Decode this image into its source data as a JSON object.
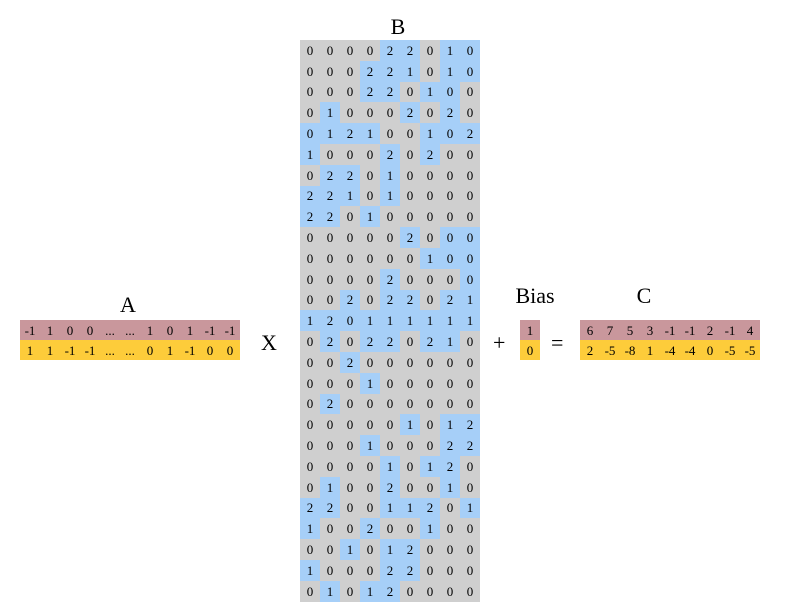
{
  "labels": {
    "A": "A",
    "B": "B",
    "Bias": "Bias",
    "C": "C"
  },
  "operators": {
    "times": "X",
    "plus": "+",
    "equals": "="
  },
  "colors": {
    "pink": "#c9979c",
    "yellow": "#fdcc3a",
    "blue": "#a6cff8",
    "gray": "#cfcfcf"
  },
  "A": [
    [
      "-1",
      "1",
      "0",
      "0",
      "...",
      "...",
      "1",
      "0",
      "1",
      "-1",
      "-1"
    ],
    [
      "1",
      "1",
      "-1",
      "-1",
      "...",
      "...",
      "0",
      "1",
      "-1",
      "0",
      "0"
    ]
  ],
  "bias": [
    "1",
    "0"
  ],
  "C": [
    [
      "6",
      "7",
      "5",
      "3",
      "-1",
      "-1",
      "2",
      "-1",
      "4"
    ],
    [
      "2",
      "-5",
      "-8",
      "1",
      "-4",
      "-4",
      "0",
      "-5",
      "-5"
    ]
  ],
  "B": [
    [
      "0",
      "0",
      "0",
      "0",
      "2",
      "2",
      "0",
      "1",
      "0"
    ],
    [
      "0",
      "0",
      "0",
      "2",
      "2",
      "1",
      "0",
      "1",
      "0"
    ],
    [
      "0",
      "0",
      "0",
      "2",
      "2",
      "0",
      "1",
      "0",
      "0"
    ],
    [
      "0",
      "1",
      "0",
      "0",
      "0",
      "2",
      "0",
      "2",
      "0"
    ],
    [
      "0",
      "1",
      "2",
      "1",
      "0",
      "0",
      "1",
      "0",
      "2"
    ],
    [
      "1",
      "0",
      "0",
      "0",
      "2",
      "0",
      "2",
      "0",
      "0"
    ],
    [
      "0",
      "2",
      "2",
      "0",
      "1",
      "0",
      "0",
      "0",
      "0"
    ],
    [
      "2",
      "2",
      "1",
      "0",
      "1",
      "0",
      "0",
      "0",
      "0"
    ],
    [
      "2",
      "2",
      "0",
      "1",
      "0",
      "0",
      "0",
      "0",
      "0"
    ],
    [
      "0",
      "0",
      "0",
      "0",
      "0",
      "2",
      "0",
      "0",
      "0"
    ],
    [
      "0",
      "0",
      "0",
      "0",
      "0",
      "0",
      "1",
      "0",
      "0"
    ],
    [
      "0",
      "0",
      "0",
      "0",
      "2",
      "0",
      "0",
      "0",
      "0"
    ],
    [
      "0",
      "0",
      "2",
      "0",
      "2",
      "2",
      "0",
      "2",
      "1"
    ],
    [
      "1",
      "2",
      "0",
      "1",
      "1",
      "1",
      "1",
      "1",
      "1"
    ],
    [
      "0",
      "2",
      "0",
      "2",
      "2",
      "0",
      "2",
      "1",
      "0"
    ],
    [
      "0",
      "0",
      "2",
      "0",
      "0",
      "0",
      "0",
      "0",
      "0"
    ],
    [
      "0",
      "0",
      "0",
      "1",
      "0",
      "0",
      "0",
      "0",
      "0"
    ],
    [
      "0",
      "2",
      "0",
      "0",
      "0",
      "0",
      "0",
      "0",
      "0"
    ],
    [
      "0",
      "0",
      "0",
      "0",
      "0",
      "1",
      "0",
      "1",
      "2"
    ],
    [
      "0",
      "0",
      "0",
      "1",
      "0",
      "0",
      "0",
      "2",
      "2"
    ],
    [
      "0",
      "0",
      "0",
      "0",
      "1",
      "0",
      "1",
      "2",
      "0"
    ],
    [
      "0",
      "1",
      "0",
      "0",
      "2",
      "0",
      "0",
      "1",
      "0"
    ],
    [
      "2",
      "2",
      "0",
      "0",
      "1",
      "1",
      "2",
      "0",
      "1"
    ],
    [
      "1",
      "0",
      "0",
      "2",
      "0",
      "0",
      "1",
      "0",
      "0"
    ],
    [
      "0",
      "0",
      "1",
      "0",
      "1",
      "2",
      "0",
      "0",
      "0"
    ],
    [
      "1",
      "0",
      "0",
      "0",
      "2",
      "2",
      "0",
      "0",
      "0"
    ],
    [
      "0",
      "1",
      "0",
      "1",
      "2",
      "0",
      "0",
      "0",
      "0"
    ]
  ],
  "B_colors": [
    "GGGGBBGBB",
    "GGGBBBGBB",
    "GGGBBGBBG",
    "GBGGGBGBG",
    "BBBBGGBBB",
    "BGGGBGBGG",
    "GBBGBGGGG",
    "BBBGBGGGG",
    "BBGBGGGGG",
    "GGGGGBGBB",
    "GGGGGGBBB",
    "GGGGBGGGB",
    "GGBGBBGBB",
    "BBBBBBBBB",
    "GBGBBGBBG",
    "GGBGGGGGG",
    "GGGBGGGGG",
    "GBGGGGGGG",
    "GGGGGBGBB",
    "GGGBGGGBB",
    "GGGGBGBBG",
    "GBGGBGGBG",
    "BBGGBBBGB",
    "BGGBGGBGG",
    "GGBGBBGGG",
    "BGGGBBGGG",
    "GBGBBGGGG"
  ]
}
